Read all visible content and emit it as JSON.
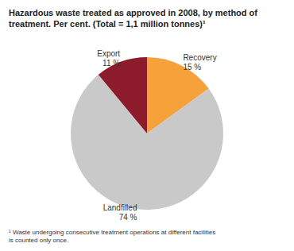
{
  "chart_data": {
    "type": "pie",
    "title": "Hazardous waste treated as approved in 2008, by method of treatment. Per cent. (Total = 1,1 million tonnes)¹",
    "annotations": [
      "¹ Waste undergoing consecutive treatment operations at different facilities is counted only once."
    ],
    "categories": [
      "Recovery",
      "Landfilled",
      "Export"
    ],
    "values": [
      15,
      74,
      11
    ],
    "value_labels": [
      "15 %",
      "74 %",
      "11 %"
    ],
    "colors": [
      "#f7a13b",
      "#c9c9c9",
      "#8c1b2b"
    ],
    "data_labels": true
  }
}
